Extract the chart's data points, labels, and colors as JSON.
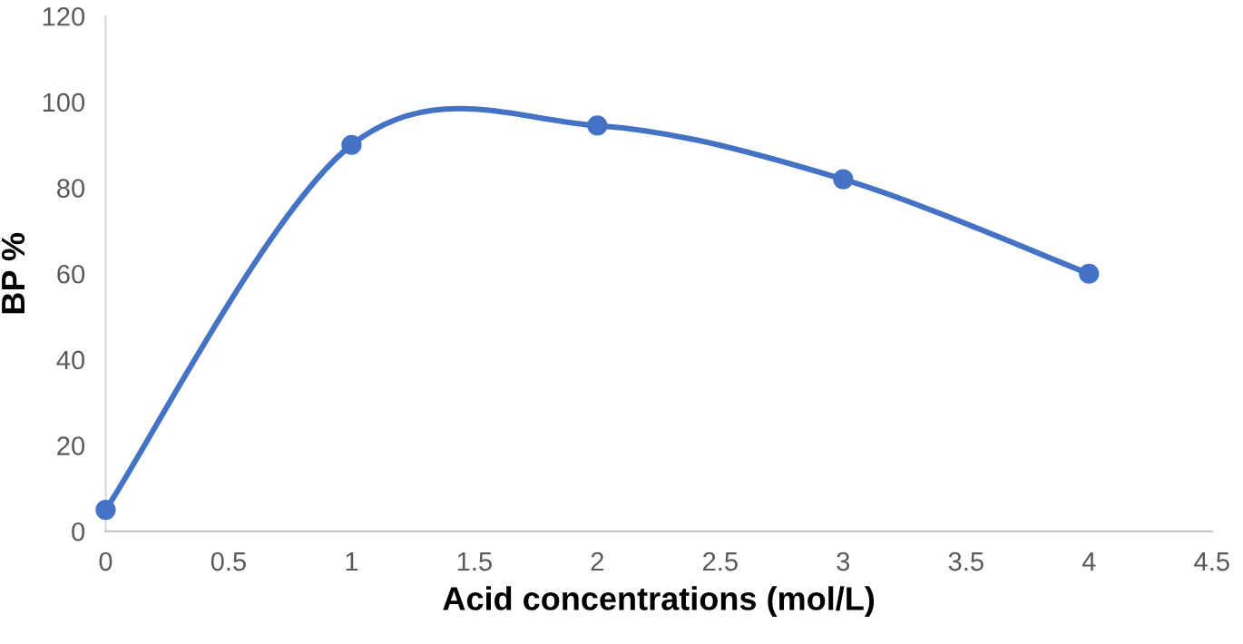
{
  "chart_data": {
    "type": "line",
    "xlabel": "Acid concentrations (mol/L)",
    "ylabel": "BP %",
    "x": [
      0,
      1,
      2,
      3,
      4
    ],
    "series": [
      {
        "color": "#4472c4",
        "values": [
          5,
          90,
          94.5,
          82,
          60
        ]
      }
    ],
    "xlim": [
      0,
      4.5
    ],
    "ylim": [
      0,
      120
    ],
    "xticks": [
      0,
      0.5,
      1,
      1.5,
      2,
      2.5,
      3,
      3.5,
      4,
      4.5
    ],
    "yticks": [
      0,
      20,
      40,
      60,
      80,
      100,
      120
    ],
    "marker": "circle",
    "line_style": "solid"
  }
}
